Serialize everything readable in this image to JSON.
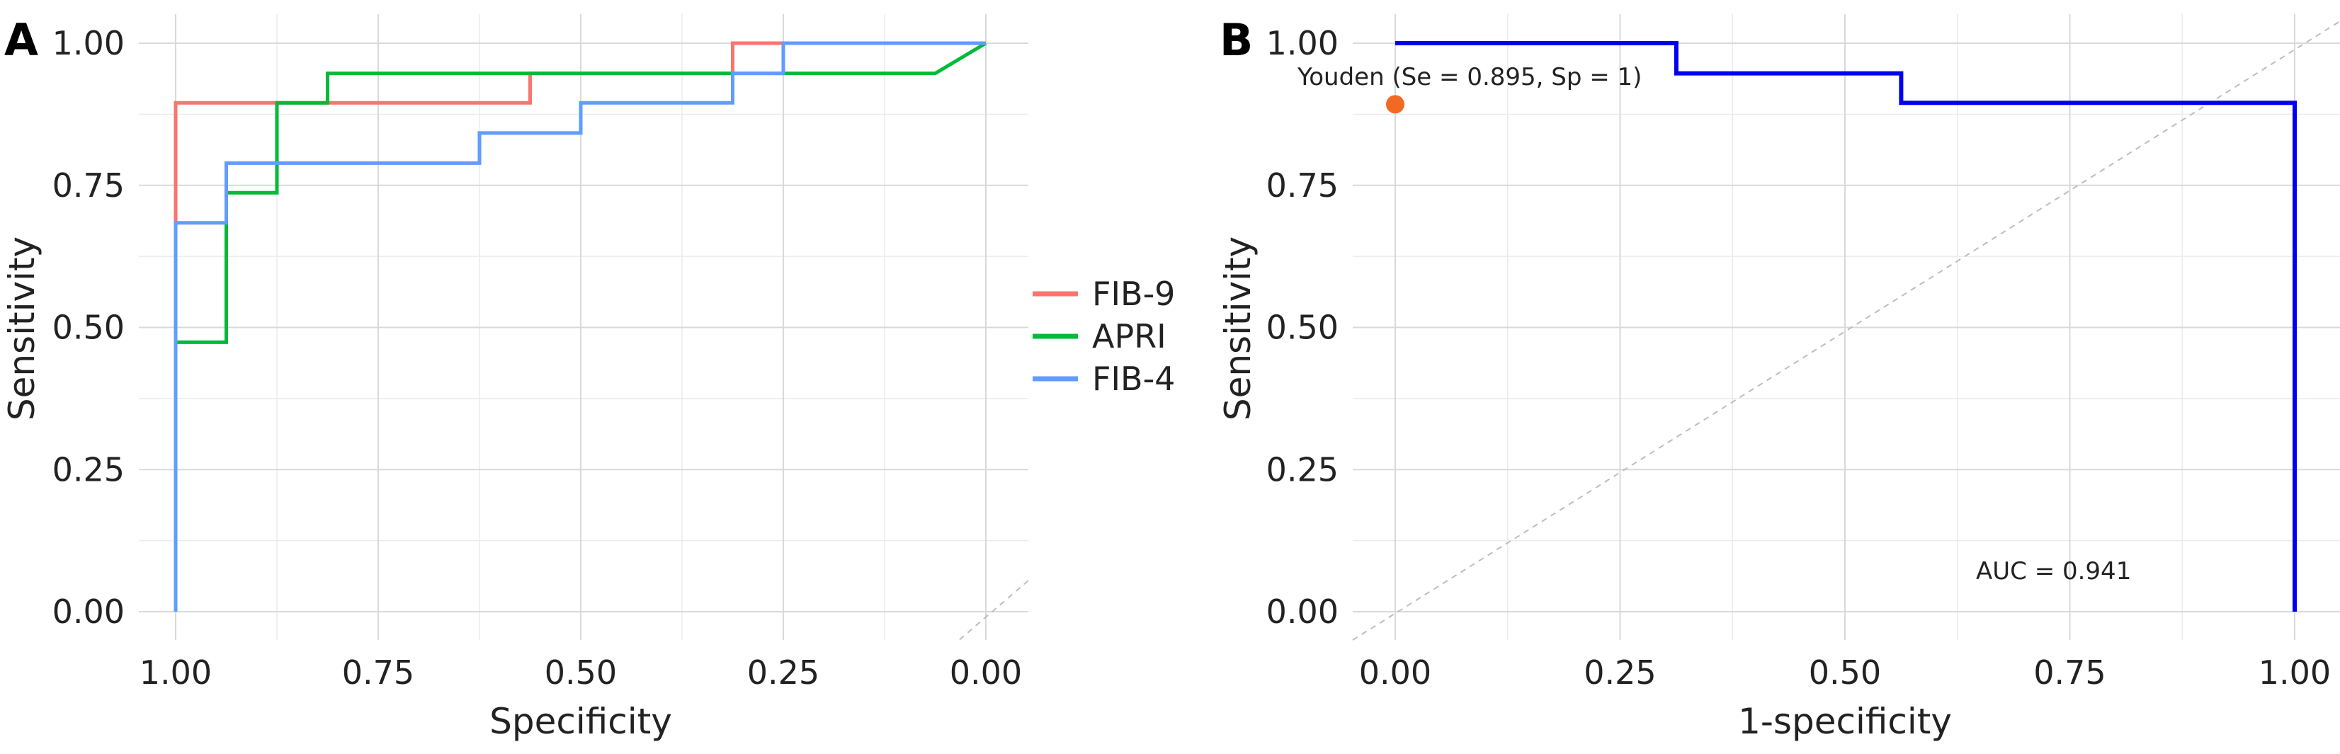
{
  "panels": {
    "a": {
      "letter": "A"
    },
    "b": {
      "letter": "B"
    }
  },
  "chart_data": [
    {
      "type": "line",
      "panel": "A",
      "xlabel": "Specificity",
      "ylabel": "Sensitivity",
      "xlim": [
        1.0,
        0.0
      ],
      "x_reversed": true,
      "ylim": [
        0.0,
        1.0
      ],
      "x_ticks": [
        "1.00",
        "0.75",
        "0.50",
        "0.25",
        "0.00"
      ],
      "y_ticks": [
        "0.00",
        "0.25",
        "0.50",
        "0.75",
        "1.00"
      ],
      "grid": true,
      "legend_position": "right",
      "reference_line": "diagonal",
      "series": [
        {
          "name": "FIB-9",
          "color": "#f8766d",
          "points": [
            [
              1.0,
              0.0
            ],
            [
              1.0,
              0.895
            ],
            [
              0.5625,
              0.895
            ],
            [
              0.5625,
              0.947
            ],
            [
              0.3125,
              0.947
            ],
            [
              0.3125,
              1.0
            ],
            [
              0.0,
              1.0
            ]
          ]
        },
        {
          "name": "APRI",
          "color": "#00ba38",
          "points": [
            [
              1.0,
              0.0
            ],
            [
              1.0,
              0.474
            ],
            [
              0.9375,
              0.474
            ],
            [
              0.9375,
              0.737
            ],
            [
              0.875,
              0.737
            ],
            [
              0.875,
              0.895
            ],
            [
              0.8125,
              0.895
            ],
            [
              0.8125,
              0.947
            ],
            [
              0.0625,
              0.947
            ],
            [
              0.0,
              1.0
            ]
          ]
        },
        {
          "name": "FIB-4",
          "color": "#619cff",
          "points": [
            [
              1.0,
              0.0
            ],
            [
              1.0,
              0.684
            ],
            [
              0.9375,
              0.684
            ],
            [
              0.9375,
              0.789
            ],
            [
              0.625,
              0.789
            ],
            [
              0.625,
              0.842
            ],
            [
              0.5,
              0.842
            ],
            [
              0.5,
              0.895
            ],
            [
              0.3125,
              0.895
            ],
            [
              0.3125,
              0.947
            ],
            [
              0.25,
              0.947
            ],
            [
              0.25,
              1.0
            ],
            [
              0.0,
              1.0
            ]
          ]
        }
      ]
    },
    {
      "type": "line",
      "panel": "B",
      "xlabel": "1-specificity",
      "ylabel": "Sensitivity",
      "xlim": [
        0.0,
        1.0
      ],
      "ylim": [
        0.0,
        1.0
      ],
      "x_ticks": [
        "0.00",
        "0.25",
        "0.50",
        "0.75",
        "1.00"
      ],
      "y_ticks": [
        "0.00",
        "0.25",
        "0.50",
        "0.75",
        "1.00"
      ],
      "grid": true,
      "reference_line": "diagonal",
      "series": [
        {
          "color": "#0000ee",
          "points": [
            [
              0.0,
              1.0
            ],
            [
              0.3125,
              1.0
            ],
            [
              0.3125,
              0.947
            ],
            [
              0.5625,
              0.947
            ],
            [
              0.5625,
              0.895
            ],
            [
              1.0,
              0.895
            ],
            [
              1.0,
              0.0
            ]
          ]
        }
      ],
      "highlight_point": {
        "x": 0.0,
        "y": 0.895,
        "color": "#f26a21"
      },
      "annotations": {
        "youden": "Youden (Se = 0.895, Sp = 1)",
        "auc": "AUC = 0.941"
      }
    }
  ]
}
